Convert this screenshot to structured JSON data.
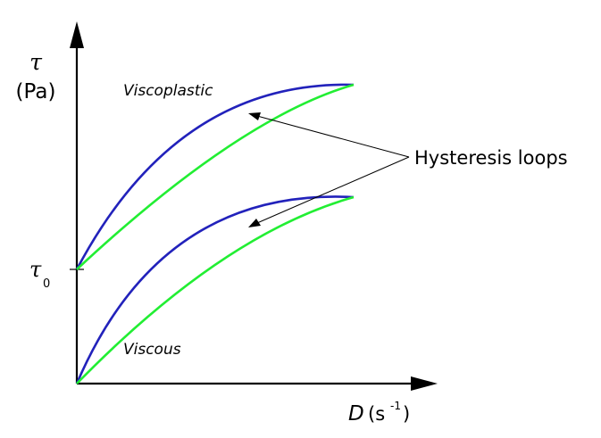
{
  "diagram": {
    "y_axis": {
      "symbol": "τ",
      "unit": "(Pa)"
    },
    "x_axis": {
      "symbol": "D",
      "unit_open": "(s",
      "unit_exp": "-1",
      "unit_close": ")"
    },
    "tau0": {
      "base": "τ",
      "subscript": "0"
    },
    "curves": {
      "viscoplastic_label": "Viscoplastic",
      "viscous_label": "Viscous"
    },
    "annotation": {
      "label": "Hysteresis loops"
    },
    "colors": {
      "upward_curve": "#2222bb",
      "downward_curve": "#22ee33",
      "axes": "#000000",
      "arrows": "#000000"
    }
  }
}
